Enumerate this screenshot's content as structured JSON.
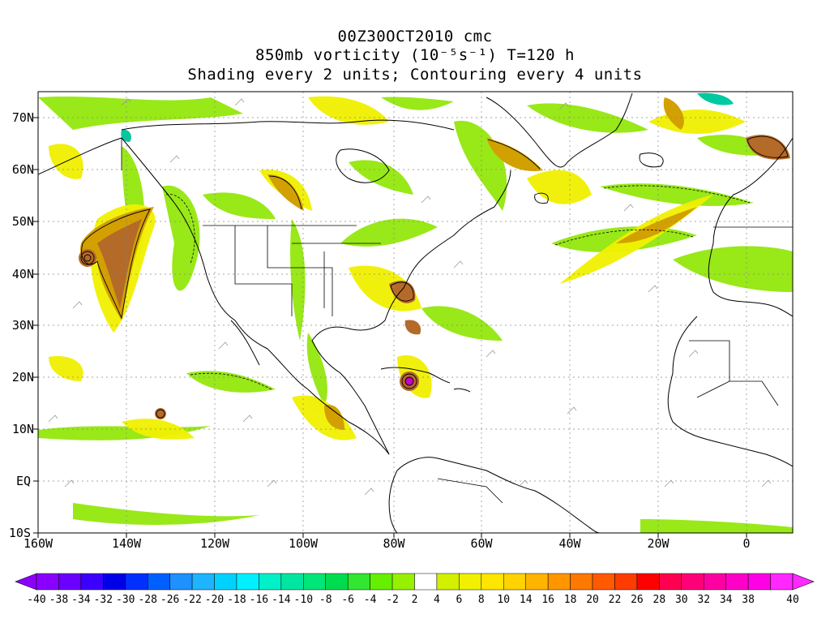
{
  "titles": {
    "line1": "00Z30OCT2010 cmc",
    "line2": "850mb vorticity (10⁻⁵s⁻¹) T=120 h",
    "line3": "Shading every 2 units; Contouring every 4 units"
  },
  "axes": {
    "lat_labels": [
      "70N",
      "60N",
      "50N",
      "40N",
      "30N",
      "20N",
      "10N",
      "EQ",
      "10S"
    ],
    "lon_labels": [
      "160W",
      "140W",
      "120W",
      "100W",
      "80W",
      "60W",
      "40W",
      "20W",
      "0"
    ]
  },
  "colorbar": {
    "labels": [
      "-40",
      "-38",
      "-34",
      "-32",
      "-30",
      "-28",
      "-26",
      "-22",
      "-20",
      "-18",
      "-16",
      "-14",
      "-10",
      "-8",
      "-6",
      "-4",
      "-2",
      "2",
      "4",
      "6",
      "8",
      "10",
      "14",
      "16",
      "18",
      "20",
      "22",
      "26",
      "28",
      "30",
      "32",
      "34",
      "38",
      "40"
    ],
    "colors": [
      "#8a00ff",
      "#6a00ff",
      "#3c00ff",
      "#0000e8",
      "#0030ff",
      "#0060ff",
      "#1e90ff",
      "#1eb4ff",
      "#00d2ff",
      "#00f0ff",
      "#00f0c8",
      "#00e6a0",
      "#00e678",
      "#00dc50",
      "#32e632",
      "#64f000",
      "#96f000",
      "#ffffff",
      "#d2f000",
      "#f0f000",
      "#ffe600",
      "#ffd200",
      "#ffb400",
      "#ff9600",
      "#ff7800",
      "#ff5a00",
      "#ff3c00",
      "#ff0000",
      "#ff0050",
      "#ff0078",
      "#ff00a0",
      "#ff00c8",
      "#ff00e6",
      "#ff28ff"
    ]
  },
  "colors": {
    "green": "#8ee600",
    "yellow": "#f0f000",
    "gold": "#d2a000",
    "brown": "#b46a28",
    "cyan": "#00c8a0",
    "magenta": "#c800c8",
    "coast": "#000000"
  }
}
